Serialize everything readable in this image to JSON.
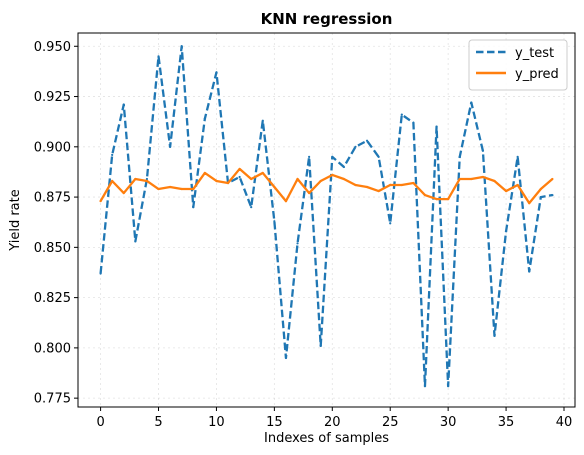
{
  "chart_data": {
    "type": "line",
    "title": "KNN regression",
    "xlabel": "Indexes of samples",
    "ylabel": "Yield rate",
    "xlim": [
      -1.95,
      40.95
    ],
    "ylim": [
      0.7706,
      0.9566
    ],
    "x_ticks": [
      0,
      5,
      10,
      15,
      20,
      25,
      30,
      35,
      40
    ],
    "y_ticks": [
      0.775,
      0.8,
      0.825,
      0.85,
      0.875,
      0.9,
      0.925,
      0.95
    ],
    "x_tick_labels": [
      "0",
      "5",
      "10",
      "15",
      "20",
      "25",
      "30",
      "35",
      "40"
    ],
    "y_tick_labels": [
      "0.775",
      "0.800",
      "0.825",
      "0.850",
      "0.875",
      "0.900",
      "0.925",
      "0.950"
    ],
    "grid": true,
    "legend_position": "top-right",
    "x": [
      0,
      1,
      2,
      3,
      4,
      5,
      6,
      7,
      8,
      9,
      10,
      11,
      12,
      13,
      14,
      15,
      16,
      17,
      18,
      19,
      20,
      21,
      22,
      23,
      24,
      25,
      26,
      27,
      28,
      29,
      30,
      31,
      32,
      33,
      34,
      35,
      36,
      37,
      38,
      39
    ],
    "series": [
      {
        "name": "y_test",
        "color": "#1f77b4",
        "style": "dashed",
        "values": [
          0.837,
          0.896,
          0.921,
          0.853,
          0.884,
          0.945,
          0.9,
          0.95,
          0.87,
          0.914,
          0.937,
          0.882,
          0.885,
          0.87,
          0.913,
          0.863,
          0.795,
          0.852,
          0.895,
          0.801,
          0.895,
          0.89,
          0.9,
          0.903,
          0.895,
          0.862,
          0.916,
          0.912,
          0.781,
          0.91,
          0.781,
          0.895,
          0.922,
          0.898,
          0.806,
          0.858,
          0.895,
          0.838,
          0.875,
          0.876
        ]
      },
      {
        "name": "y_pred",
        "color": "#ff7f0e",
        "style": "solid",
        "values": [
          0.873,
          0.883,
          0.877,
          0.884,
          0.883,
          0.879,
          0.88,
          0.879,
          0.879,
          0.887,
          0.883,
          0.882,
          0.889,
          0.884,
          0.887,
          0.88,
          0.873,
          0.884,
          0.877,
          0.883,
          0.886,
          0.884,
          0.881,
          0.88,
          0.878,
          0.881,
          0.881,
          0.882,
          0.876,
          0.874,
          0.874,
          0.884,
          0.884,
          0.885,
          0.883,
          0.878,
          0.881,
          0.872,
          0.879,
          0.884
        ]
      }
    ]
  }
}
